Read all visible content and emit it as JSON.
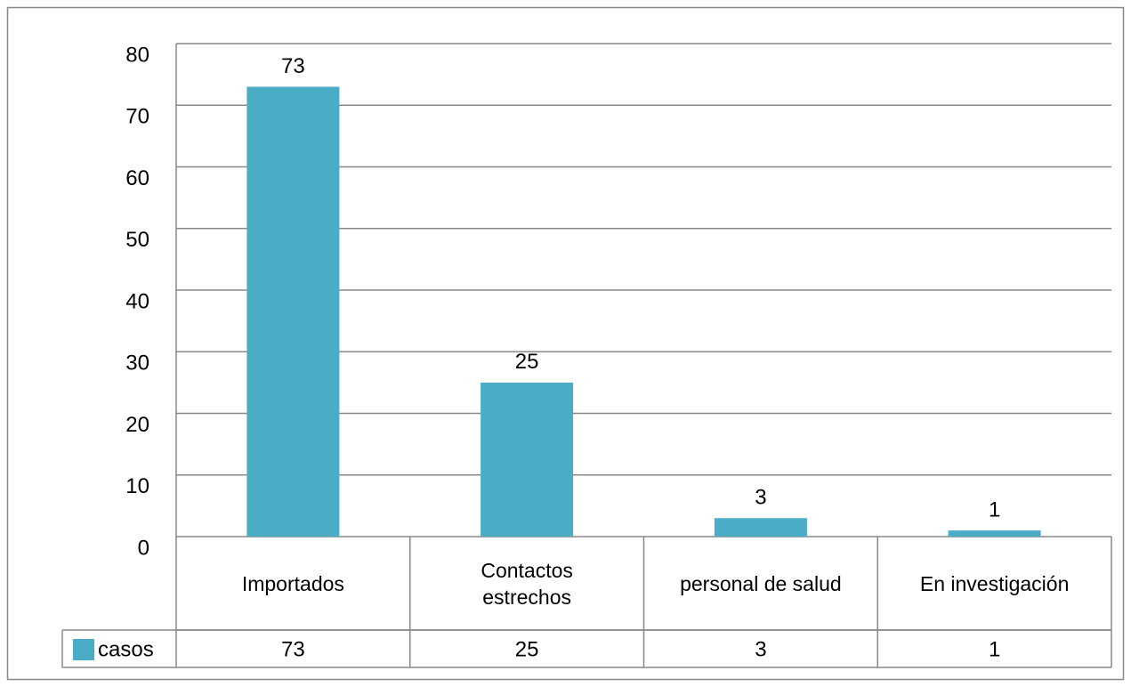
{
  "chart_data": {
    "type": "bar",
    "categories": [
      "Importados",
      "Contactos estrechos",
      "personal de salud",
      "En investigación"
    ],
    "series": [
      {
        "name": "casos",
        "color": "#4bacc6",
        "values": [
          73,
          25,
          3,
          1
        ]
      }
    ],
    "ylim": [
      0,
      80
    ],
    "yticks": [
      0,
      10,
      20,
      30,
      40,
      50,
      60,
      70,
      80
    ],
    "grid": true,
    "data_table": true
  }
}
